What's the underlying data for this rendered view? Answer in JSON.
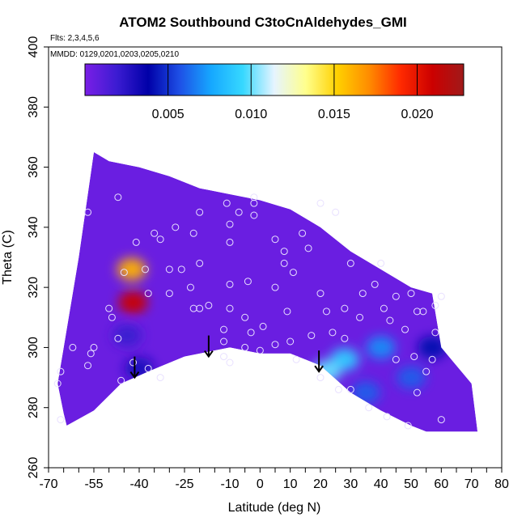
{
  "chart_data": {
    "type": "heatmap",
    "title": "ATOM2 Southbound C3toCnAldehydes_GMI",
    "flights_note": "Flts: 2,3,4,5,6",
    "dates_note": "MMDD: 0129,0201,0203,0205,0210",
    "xlabel": "Latitude (deg N)",
    "ylabel": "Theta (C)",
    "xlim": [
      -70,
      80
    ],
    "ylim": [
      260,
      400
    ],
    "x_ticks": [
      -70,
      -55,
      -40,
      -25,
      -10,
      0,
      10,
      20,
      30,
      40,
      50,
      60,
      70,
      80
    ],
    "y_ticks": [
      260,
      280,
      300,
      320,
      340,
      360,
      380,
      400
    ],
    "colorbar": {
      "range": [
        0.0,
        0.0228
      ],
      "ticks": [
        "0.005",
        "0.010",
        "0.015",
        "0.020"
      ],
      "tick_values": [
        0.005,
        0.01,
        0.015,
        0.02
      ],
      "colors": [
        "#7a1fe6",
        "#3c1cd2",
        "#0000a8",
        "#1e50e6",
        "#16a8ff",
        "#36d8ff",
        "#e6f4ff",
        "#ffff8c",
        "#ffd000",
        "#ff8c00",
        "#ff2a00",
        "#cc0000",
        "#a01a1a"
      ]
    },
    "field": {
      "background_value": 0.0005,
      "outline": [
        [
          -64,
          274
        ],
        [
          -55,
          279
        ],
        [
          -46,
          288
        ],
        [
          -37,
          292
        ],
        [
          -25,
          297
        ],
        [
          -10,
          300
        ],
        [
          0,
          298
        ],
        [
          10,
          298
        ],
        [
          20,
          294
        ],
        [
          30,
          285
        ],
        [
          40,
          279
        ],
        [
          50,
          274
        ],
        [
          55,
          272
        ],
        [
          72,
          272
        ],
        [
          70,
          288
        ],
        [
          60,
          300
        ],
        [
          57,
          318
        ],
        [
          50,
          320
        ],
        [
          40,
          326
        ],
        [
          30,
          332
        ],
        [
          20,
          340
        ],
        [
          10,
          346
        ],
        [
          0,
          349
        ],
        [
          -10,
          351
        ],
        [
          -20,
          353
        ],
        [
          -30,
          357
        ],
        [
          -40,
          360
        ],
        [
          -50,
          362
        ],
        [
          -55,
          365
        ],
        [
          -60,
          330
        ],
        [
          -65,
          300
        ],
        [
          -67,
          288
        ],
        [
          -65,
          278
        ]
      ],
      "hotspots": [
        {
          "lat": -42.5,
          "theta": 326,
          "value": 0.016
        },
        {
          "lat": -42,
          "theta": 315,
          "value": 0.021
        },
        {
          "lat": -40,
          "theta": 293,
          "value": 0.003
        },
        {
          "lat": -44,
          "theta": 304,
          "value": 0.002
        },
        {
          "lat": 28,
          "theta": 296,
          "value": 0.009
        },
        {
          "lat": 22,
          "theta": 292,
          "value": 0.01
        },
        {
          "lat": 40,
          "theta": 300,
          "value": 0.007
        },
        {
          "lat": 50,
          "theta": 290,
          "value": 0.006
        },
        {
          "lat": 57,
          "theta": 300,
          "value": 0.004
        },
        {
          "lat": 35,
          "theta": 285,
          "value": 0.006
        }
      ]
    },
    "samples": [
      [
        -57,
        345
      ],
      [
        -47,
        350
      ],
      [
        -41,
        335
      ],
      [
        -45,
        325
      ],
      [
        -38,
        326
      ],
      [
        -35,
        338
      ],
      [
        -30,
        318
      ],
      [
        -30,
        326
      ],
      [
        -26,
        326
      ],
      [
        -22,
        338
      ],
      [
        -20,
        345
      ],
      [
        -20,
        328
      ],
      [
        -22,
        313
      ],
      [
        -17,
        314
      ],
      [
        -10,
        321
      ],
      [
        -10,
        313
      ],
      [
        -12,
        306
      ],
      [
        -12,
        302
      ],
      [
        -12,
        297
      ],
      [
        -10,
        295
      ],
      [
        -5,
        300
      ],
      [
        -5,
        310
      ],
      [
        -4,
        322
      ],
      [
        -10,
        335
      ],
      [
        -10,
        341
      ],
      [
        -7,
        345
      ],
      [
        -11,
        348
      ],
      [
        -2,
        344
      ],
      [
        -2,
        348
      ],
      [
        -2,
        350
      ],
      [
        5,
        336
      ],
      [
        8,
        328
      ],
      [
        14,
        338
      ],
      [
        16,
        333
      ],
      [
        20,
        318
      ],
      [
        22,
        312
      ],
      [
        24,
        305
      ],
      [
        28,
        313
      ],
      [
        30,
        328
      ],
      [
        34,
        318
      ],
      [
        38,
        321
      ],
      [
        40,
        328
      ],
      [
        43,
        309
      ],
      [
        45,
        296
      ],
      [
        48,
        306
      ],
      [
        51,
        297
      ],
      [
        52,
        285
      ],
      [
        55,
        292
      ],
      [
        57,
        296
      ],
      [
        58,
        305
      ],
      [
        58,
        314
      ],
      [
        60,
        317
      ],
      [
        54,
        312
      ],
      [
        50,
        318
      ],
      [
        52,
        312
      ],
      [
        -47,
        303
      ],
      [
        -49,
        310
      ],
      [
        -50,
        313
      ],
      [
        -55,
        300
      ],
      [
        -56,
        298
      ],
      [
        -57,
        294
      ],
      [
        -62,
        300
      ],
      [
        -66,
        292
      ],
      [
        -67,
        288
      ],
      [
        -66,
        276
      ],
      [
        -42,
        295
      ],
      [
        -46,
        289
      ],
      [
        -37,
        293
      ],
      [
        -33,
        290
      ],
      [
        -20,
        313
      ],
      [
        -23,
        320
      ],
      [
        0,
        299
      ],
      [
        -3,
        305
      ],
      [
        1,
        307
      ],
      [
        5,
        301
      ],
      [
        10,
        302
      ],
      [
        17,
        304
      ],
      [
        12,
        296
      ],
      [
        20,
        290
      ],
      [
        26,
        286
      ],
      [
        30,
        286
      ],
      [
        36,
        280
      ],
      [
        42,
        277
      ],
      [
        49,
        274
      ],
      [
        60,
        276
      ],
      [
        41,
        313
      ],
      [
        45,
        317
      ],
      [
        33,
        310
      ],
      [
        28,
        303
      ],
      [
        5,
        320
      ],
      [
        8,
        332
      ],
      [
        9,
        312
      ],
      [
        11,
        325
      ],
      [
        25,
        345
      ],
      [
        20,
        348
      ],
      [
        -28,
        340
      ],
      [
        -33,
        336
      ],
      [
        -37,
        318
      ]
    ],
    "arrows": [
      {
        "lat": -41.5,
        "theta_top": 297,
        "theta_bottom": 290
      },
      {
        "lat": -17,
        "theta_top": 304,
        "theta_bottom": 297
      },
      {
        "lat": 19.5,
        "theta_top": 299,
        "theta_bottom": 292
      }
    ]
  }
}
